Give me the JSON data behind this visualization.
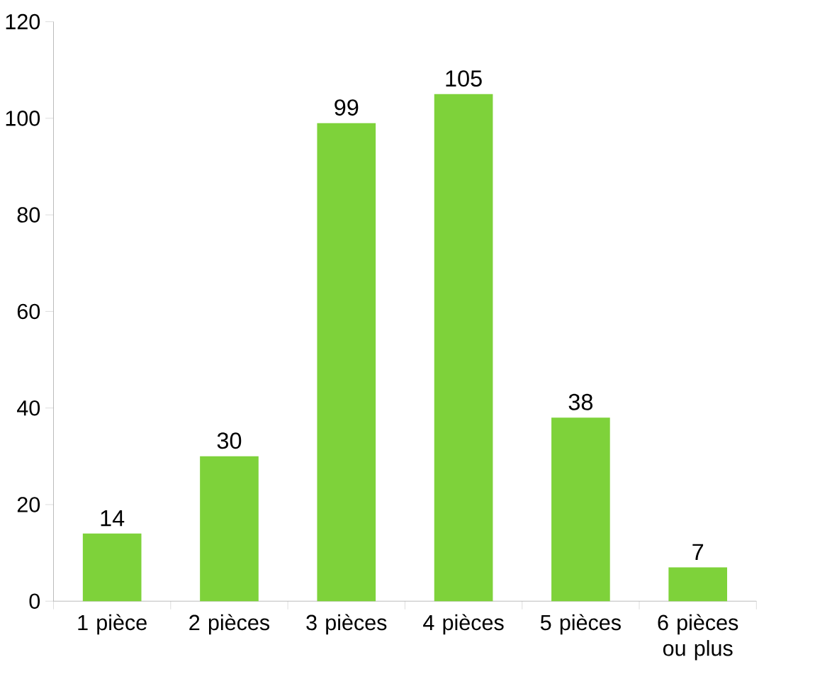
{
  "chart_data": {
    "type": "bar",
    "categories": [
      "1 pièce",
      "2 pièces",
      "3 pièces",
      "4 pièces",
      "5 pièces",
      "6 pièces ou plus"
    ],
    "values": [
      14,
      30,
      99,
      105,
      38,
      7
    ],
    "color": "#7ed23a",
    "ylim": [
      0,
      120
    ],
    "yticks": [
      0,
      20,
      40,
      60,
      80,
      100,
      120
    ],
    "data_labels": true
  }
}
